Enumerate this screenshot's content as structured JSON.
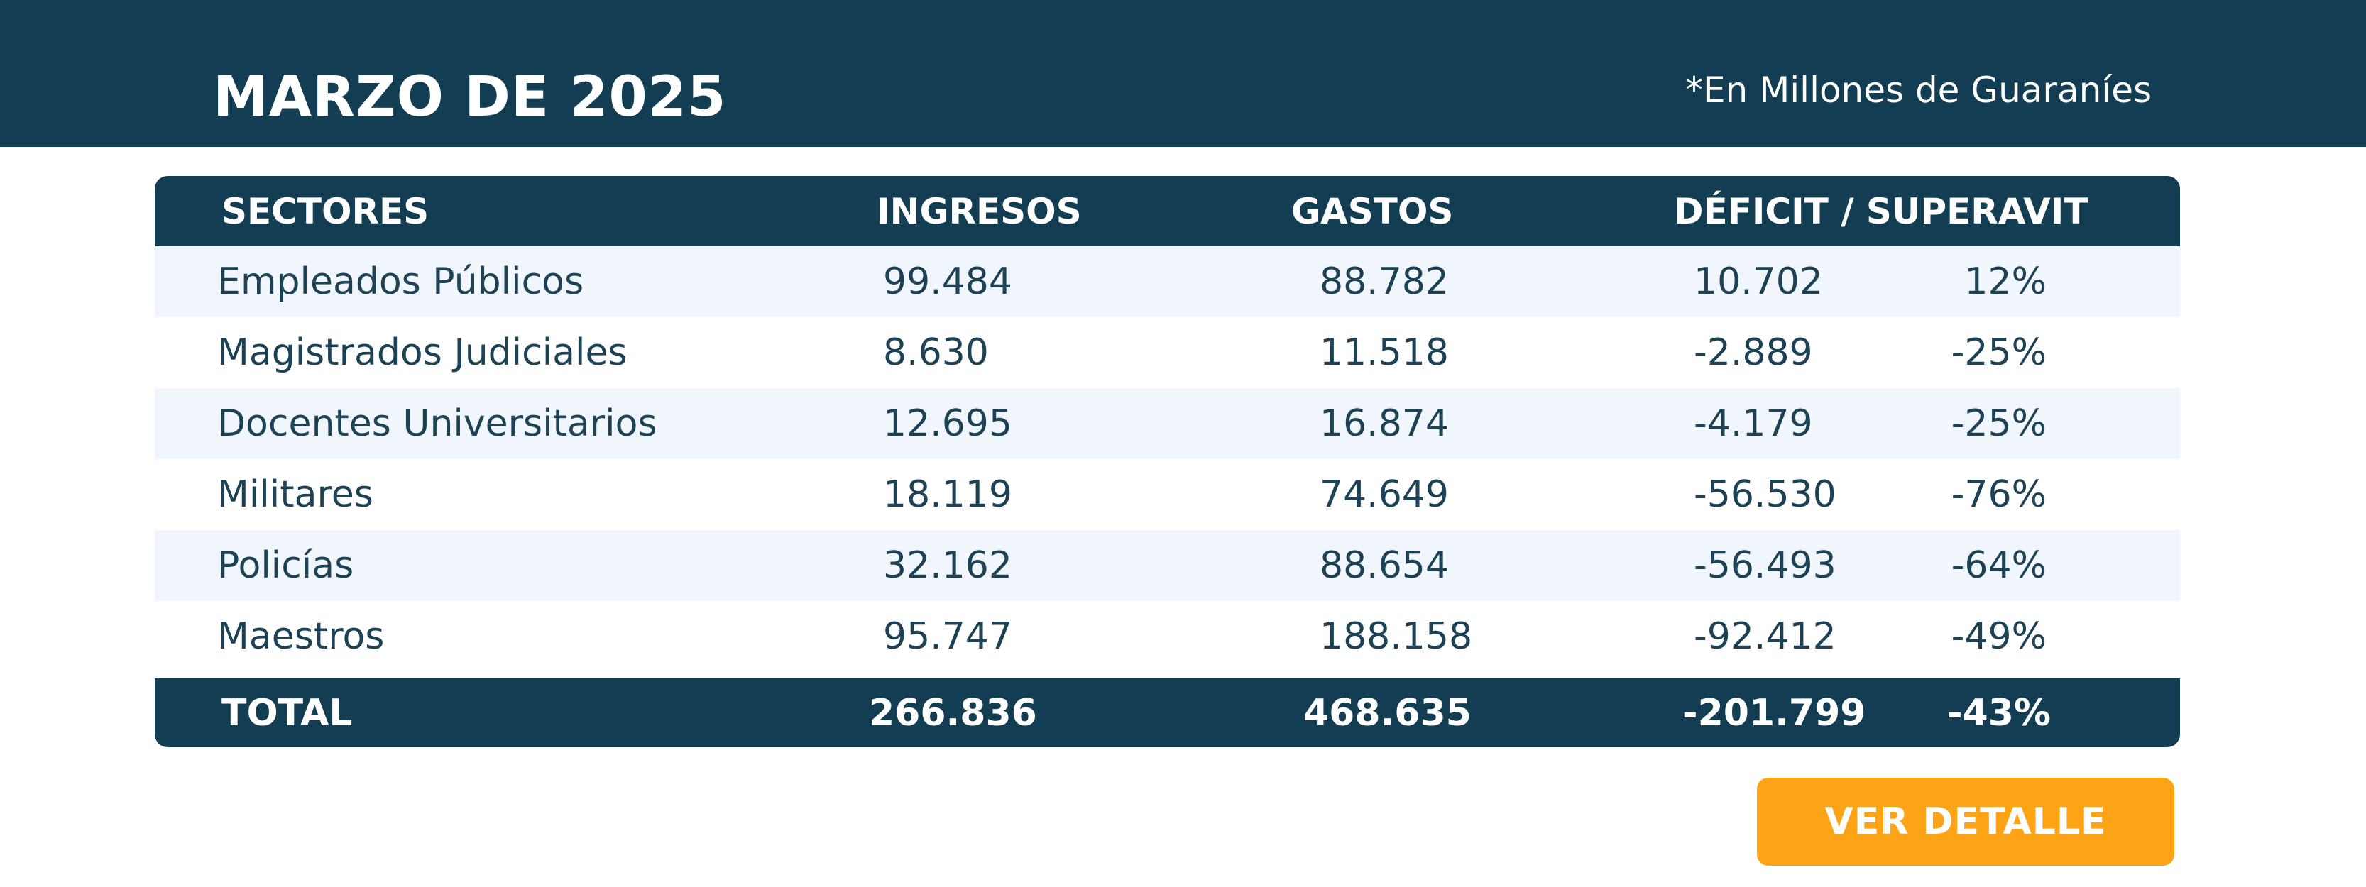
{
  "header": {
    "title": "MARZO DE 2025",
    "unit_note": "*En Millones de Guaraníes"
  },
  "table": {
    "headers": {
      "sector": "SECTORES",
      "ingresos": "INGRESOS",
      "gastos": "GASTOS",
      "deficit": "DÉFICIT / SUPERAVIT"
    },
    "rows": [
      {
        "sector": "Empleados Públicos",
        "ingresos": "99.484",
        "gastos": "88.782",
        "deficit": "10.702",
        "pct": "12%"
      },
      {
        "sector": "Magistrados Judiciales",
        "ingresos": "8.630",
        "gastos": "11.518",
        "deficit": "-2.889",
        "pct": "-25%"
      },
      {
        "sector": "Docentes Universitarios",
        "ingresos": "12.695",
        "gastos": "16.874",
        "deficit": "-4.179",
        "pct": "-25%"
      },
      {
        "sector": "Militares",
        "ingresos": "18.119",
        "gastos": "74.649",
        "deficit": "-56.530",
        "pct": "-76%"
      },
      {
        "sector": "Policías",
        "ingresos": "32.162",
        "gastos": "88.654",
        "deficit": "-56.493",
        "pct": "-64%"
      },
      {
        "sector": "Maestros",
        "ingresos": "95.747",
        "gastos": "188.158",
        "deficit": "-92.412",
        "pct": "-49%"
      }
    ],
    "total": {
      "label": "TOTAL",
      "ingresos": "266.836",
      "gastos": "468.635",
      "deficit": "-201.799",
      "pct": "-43%"
    }
  },
  "cta": {
    "label": "VER DETALLE"
  },
  "colors": {
    "primary": "#133d52",
    "alt_row": "#f1f6fc",
    "accent": "#fca416",
    "text": "#1d4255"
  }
}
